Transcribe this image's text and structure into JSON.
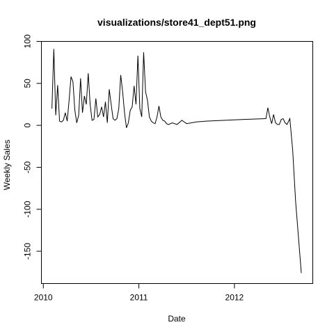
{
  "chart_data": {
    "type": "line",
    "title": "visualizations/store41_dept51.png",
    "xlabel": "Date",
    "ylabel": "Weekly Sales",
    "x_ticks": [
      {
        "value": 2010,
        "label": "2010"
      },
      {
        "value": 2011,
        "label": "2011"
      },
      {
        "value": 2012,
        "label": "2012"
      }
    ],
    "y_ticks": [
      {
        "value": 100,
        "label": "100"
      },
      {
        "value": 50,
        "label": "50"
      },
      {
        "value": 0,
        "label": "0"
      },
      {
        "value": -50,
        "label": "-50"
      },
      {
        "value": -100,
        "label": "-100"
      },
      {
        "value": -150,
        "label": "-150"
      }
    ],
    "xlim": [
      2009.98,
      2012.82
    ],
    "ylim": [
      -188.5,
      100
    ],
    "grid": false,
    "series": [
      {
        "x": [
          2010.09,
          2010.11,
          2010.13,
          2010.15,
          2010.17,
          2010.19,
          2010.21,
          2010.23,
          2010.25,
          2010.27,
          2010.29,
          2010.31,
          2010.33,
          2010.35,
          2010.37,
          2010.39,
          2010.41,
          2010.43,
          2010.45,
          2010.47,
          2010.49,
          2010.51,
          2010.53,
          2010.55,
          2010.57,
          2010.59,
          2010.61,
          2010.63,
          2010.65,
          2010.67,
          2010.69,
          2010.71,
          2010.73,
          2010.75,
          2010.77,
          2010.79,
          2010.81,
          2010.83,
          2010.85,
          2010.87,
          2010.89,
          2010.91,
          2010.93,
          2010.95,
          2010.97,
          2010.99,
          2011.01,
          2011.03,
          2011.05,
          2011.07,
          2011.09,
          2011.11,
          2011.13,
          2011.15,
          2011.17,
          2011.19,
          2011.21,
          2011.23,
          2011.25,
          2011.27,
          2011.29,
          2011.31,
          2011.35,
          2011.4,
          2011.45,
          2011.5,
          2011.6,
          2011.7,
          2011.9,
          2012.1,
          2012.33,
          2012.35,
          2012.37,
          2012.39,
          2012.41,
          2012.43,
          2012.45,
          2012.47,
          2012.49,
          2012.51,
          2012.53,
          2012.55,
          2012.58,
          2012.61,
          2012.64,
          2012.7
        ],
        "y": [
          20,
          91,
          12,
          48,
          5,
          4,
          6,
          15,
          5,
          30,
          58,
          52,
          18,
          3,
          12,
          56,
          15,
          35,
          25,
          62,
          25,
          6,
          7,
          32,
          10,
          13,
          22,
          10,
          28,
          3,
          43,
          25,
          8,
          6,
          8,
          20,
          60,
          40,
          15,
          -3,
          3,
          18,
          22,
          47,
          25,
          83,
          20,
          10,
          87,
          40,
          30,
          10,
          5,
          3,
          2,
          10,
          23,
          10,
          6,
          5,
          2,
          1,
          3,
          1,
          6,
          2,
          4,
          5,
          6,
          7,
          8,
          21,
          10,
          2,
          13,
          3,
          1,
          1,
          7,
          8,
          3,
          1,
          8,
          -30,
          -90,
          -176
        ]
      }
    ]
  }
}
